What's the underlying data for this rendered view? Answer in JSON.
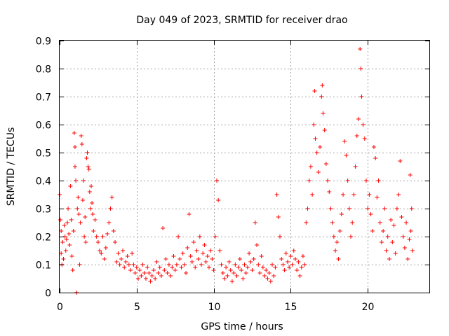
{
  "chart_data": {
    "type": "scatter",
    "title": "Day 049 of 2023, SRMTID for receiver drao",
    "xlabel": "GPS time / hours",
    "ylabel": "SRMTID / TECUs",
    "xlim": [
      0,
      24
    ],
    "ylim": [
      0,
      0.9
    ],
    "x_ticks": [
      0,
      5,
      10,
      15,
      20
    ],
    "y_ticks": [
      0,
      0.1,
      0.2,
      0.3,
      0.4,
      0.5,
      0.6,
      0.7,
      0.8,
      0.9
    ],
    "x_tick_labels": [
      "0",
      "5",
      "10",
      "15",
      "20"
    ],
    "y_tick_labels": [
      "0",
      "0.1",
      "0.2",
      "0.3",
      "0.4",
      "0.5",
      "0.6",
      "0.7",
      "0.8",
      "0.9"
    ],
    "grid": true,
    "marker": "+",
    "color": "#ff0000",
    "series": [
      {
        "name": "SRMTID",
        "description": "scatter of receiver drao points, values estimated from axes",
        "points": [
          [
            0.0,
            0.35
          ],
          [
            0.05,
            0.26
          ],
          [
            0.1,
            0.22
          ],
          [
            0.1,
            0.14
          ],
          [
            0.15,
            0.1
          ],
          [
            0.2,
            0.18
          ],
          [
            0.25,
            0.12
          ],
          [
            0.3,
            0.24
          ],
          [
            0.35,
            0.2
          ],
          [
            0.4,
            0.15
          ],
          [
            0.45,
            0.19
          ],
          [
            0.5,
            0.25
          ],
          [
            0.55,
            0.3
          ],
          [
            0.6,
            0.21
          ],
          [
            0.65,
            0.17
          ],
          [
            0.7,
            0.38
          ],
          [
            0.75,
            0.26
          ],
          [
            0.8,
            0.13
          ],
          [
            0.85,
            0.08
          ],
          [
            0.9,
            0.22
          ],
          [
            0.95,
            0.57
          ],
          [
            1.0,
            0.52
          ],
          [
            1.0,
            0.45
          ],
          [
            1.05,
            0.4
          ],
          [
            1.1,
            0.0
          ],
          [
            1.15,
            0.3
          ],
          [
            1.2,
            0.34
          ],
          [
            1.25,
            0.28
          ],
          [
            1.3,
            0.1
          ],
          [
            1.35,
            0.25
          ],
          [
            1.4,
            0.56
          ],
          [
            1.45,
            0.53
          ],
          [
            1.5,
            0.33
          ],
          [
            1.55,
            0.4
          ],
          [
            1.6,
            0.2
          ],
          [
            1.65,
            0.27
          ],
          [
            1.7,
            0.18
          ],
          [
            1.75,
            0.48
          ],
          [
            1.8,
            0.5
          ],
          [
            1.85,
            0.45
          ],
          [
            1.9,
            0.44
          ],
          [
            1.95,
            0.36
          ],
          [
            2.0,
            0.3
          ],
          [
            2.05,
            0.38
          ],
          [
            2.1,
            0.32
          ],
          [
            2.15,
            0.28
          ],
          [
            2.2,
            0.22
          ],
          [
            2.3,
            0.26
          ],
          [
            2.4,
            0.2
          ],
          [
            2.5,
            0.18
          ],
          [
            2.6,
            0.15
          ],
          [
            2.7,
            0.14
          ],
          [
            2.8,
            0.2
          ],
          [
            2.9,
            0.12
          ],
          [
            3.0,
            0.16
          ],
          [
            3.1,
            0.21
          ],
          [
            3.2,
            0.25
          ],
          [
            3.3,
            0.3
          ],
          [
            3.4,
            0.34
          ],
          [
            3.5,
            0.22
          ],
          [
            3.6,
            0.18
          ],
          [
            3.7,
            0.11
          ],
          [
            3.8,
            0.14
          ],
          [
            3.9,
            0.1
          ],
          [
            4.0,
            0.12
          ],
          [
            4.1,
            0.15
          ],
          [
            4.2,
            0.09
          ],
          [
            4.3,
            0.11
          ],
          [
            4.4,
            0.13
          ],
          [
            4.5,
            0.1
          ],
          [
            4.6,
            0.08
          ],
          [
            4.7,
            0.14
          ],
          [
            4.8,
            0.1
          ],
          [
            4.9,
            0.07
          ],
          [
            5.0,
            0.09
          ],
          [
            5.1,
            0.05
          ],
          [
            5.2,
            0.08
          ],
          [
            5.3,
            0.06
          ],
          [
            5.4,
            0.1
          ],
          [
            5.5,
            0.07
          ],
          [
            5.6,
            0.05
          ],
          [
            5.7,
            0.09
          ],
          [
            5.8,
            0.07
          ],
          [
            5.9,
            0.04
          ],
          [
            6.0,
            0.06
          ],
          [
            6.1,
            0.08
          ],
          [
            6.2,
            0.05
          ],
          [
            6.3,
            0.11
          ],
          [
            6.4,
            0.07
          ],
          [
            6.5,
            0.09
          ],
          [
            6.6,
            0.06
          ],
          [
            6.7,
            0.23
          ],
          [
            6.8,
            0.08
          ],
          [
            6.9,
            0.12
          ],
          [
            7.0,
            0.07
          ],
          [
            7.1,
            0.1
          ],
          [
            7.2,
            0.06
          ],
          [
            7.3,
            0.09
          ],
          [
            7.4,
            0.13
          ],
          [
            7.5,
            0.08
          ],
          [
            7.6,
            0.1
          ],
          [
            7.7,
            0.2
          ],
          [
            7.8,
            0.12
          ],
          [
            7.9,
            0.09
          ],
          [
            8.0,
            0.14
          ],
          [
            8.1,
            0.1
          ],
          [
            8.2,
            0.07
          ],
          [
            8.3,
            0.16
          ],
          [
            8.4,
            0.28
          ],
          [
            8.5,
            0.13
          ],
          [
            8.6,
            0.11
          ],
          [
            8.7,
            0.18
          ],
          [
            8.8,
            0.09
          ],
          [
            8.9,
            0.15
          ],
          [
            9.0,
            0.12
          ],
          [
            9.1,
            0.2
          ],
          [
            9.2,
            0.1
          ],
          [
            9.3,
            0.14
          ],
          [
            9.4,
            0.17
          ],
          [
            9.5,
            0.11
          ],
          [
            9.6,
            0.13
          ],
          [
            9.7,
            0.09
          ],
          [
            9.8,
            0.15
          ],
          [
            9.9,
            0.12
          ],
          [
            10.0,
            0.08
          ],
          [
            10.1,
            0.2
          ],
          [
            10.2,
            0.4
          ],
          [
            10.3,
            0.33
          ],
          [
            10.4,
            0.15
          ],
          [
            10.5,
            0.1
          ],
          [
            10.6,
            0.07
          ],
          [
            10.7,
            0.05
          ],
          [
            10.8,
            0.09
          ],
          [
            10.9,
            0.06
          ],
          [
            11.0,
            0.11
          ],
          [
            11.1,
            0.08
          ],
          [
            11.2,
            0.04
          ],
          [
            11.3,
            0.07
          ],
          [
            11.4,
            0.1
          ],
          [
            11.5,
            0.06
          ],
          [
            11.6,
            0.09
          ],
          [
            11.7,
            0.12
          ],
          [
            11.8,
            0.08
          ],
          [
            11.9,
            0.05
          ],
          [
            12.0,
            0.1
          ],
          [
            12.1,
            0.07
          ],
          [
            12.2,
            0.09
          ],
          [
            12.3,
            0.14
          ],
          [
            12.4,
            0.11
          ],
          [
            12.5,
            0.08
          ],
          [
            12.6,
            0.12
          ],
          [
            12.7,
            0.25
          ],
          [
            12.8,
            0.17
          ],
          [
            12.9,
            0.1
          ],
          [
            13.0,
            0.07
          ],
          [
            13.1,
            0.13
          ],
          [
            13.2,
            0.09
          ],
          [
            13.3,
            0.06
          ],
          [
            13.4,
            0.08
          ],
          [
            13.5,
            0.05
          ],
          [
            13.6,
            0.07
          ],
          [
            13.7,
            0.04
          ],
          [
            13.8,
            0.1
          ],
          [
            13.9,
            0.06
          ],
          [
            14.0,
            0.09
          ],
          [
            14.1,
            0.35
          ],
          [
            14.2,
            0.27
          ],
          [
            14.3,
            0.2
          ],
          [
            14.4,
            0.12
          ],
          [
            14.5,
            0.1
          ],
          [
            14.6,
            0.08
          ],
          [
            14.7,
            0.14
          ],
          [
            14.8,
            0.11
          ],
          [
            14.9,
            0.09
          ],
          [
            15.0,
            0.13
          ],
          [
            15.1,
            0.1
          ],
          [
            15.2,
            0.15
          ],
          [
            15.3,
            0.12
          ],
          [
            15.4,
            0.08
          ],
          [
            15.5,
            0.11
          ],
          [
            15.6,
            0.06
          ],
          [
            15.7,
            0.09
          ],
          [
            15.8,
            0.13
          ],
          [
            15.9,
            0.1
          ],
          [
            16.0,
            0.25
          ],
          [
            16.1,
            0.3
          ],
          [
            16.2,
            0.4
          ],
          [
            16.3,
            0.45
          ],
          [
            16.4,
            0.35
          ],
          [
            16.5,
            0.6
          ],
          [
            16.55,
            0.72
          ],
          [
            16.6,
            0.55
          ],
          [
            16.7,
            0.5
          ],
          [
            16.8,
            0.43
          ],
          [
            16.9,
            0.52
          ],
          [
            17.0,
            0.7
          ],
          [
            17.05,
            0.74
          ],
          [
            17.1,
            0.64
          ],
          [
            17.2,
            0.58
          ],
          [
            17.3,
            0.46
          ],
          [
            17.4,
            0.4
          ],
          [
            17.5,
            0.36
          ],
          [
            17.6,
            0.3
          ],
          [
            17.7,
            0.25
          ],
          [
            17.8,
            0.2
          ],
          [
            17.9,
            0.15
          ],
          [
            18.0,
            0.18
          ],
          [
            18.1,
            0.12
          ],
          [
            18.2,
            0.22
          ],
          [
            18.3,
            0.28
          ],
          [
            18.4,
            0.35
          ],
          [
            18.5,
            0.54
          ],
          [
            18.6,
            0.49
          ],
          [
            18.7,
            0.4
          ],
          [
            18.8,
            0.3
          ],
          [
            18.9,
            0.2
          ],
          [
            19.0,
            0.25
          ],
          [
            19.1,
            0.35
          ],
          [
            19.2,
            0.45
          ],
          [
            19.3,
            0.56
          ],
          [
            19.4,
            0.62
          ],
          [
            19.5,
            0.87
          ],
          [
            19.55,
            0.8
          ],
          [
            19.6,
            0.7
          ],
          [
            19.7,
            0.6
          ],
          [
            19.8,
            0.55
          ],
          [
            19.9,
            0.4
          ],
          [
            20.0,
            0.3
          ],
          [
            20.1,
            0.35
          ],
          [
            20.2,
            0.28
          ],
          [
            20.3,
            0.22
          ],
          [
            20.4,
            0.52
          ],
          [
            20.5,
            0.48
          ],
          [
            20.6,
            0.34
          ],
          [
            20.7,
            0.4
          ],
          [
            20.8,
            0.25
          ],
          [
            20.9,
            0.18
          ],
          [
            21.0,
            0.22
          ],
          [
            21.1,
            0.3
          ],
          [
            21.2,
            0.15
          ],
          [
            21.3,
            0.2
          ],
          [
            21.4,
            0.12
          ],
          [
            21.5,
            0.26
          ],
          [
            21.6,
            0.18
          ],
          [
            21.7,
            0.24
          ],
          [
            21.8,
            0.14
          ],
          [
            21.9,
            0.3
          ],
          [
            22.0,
            0.35
          ],
          [
            22.1,
            0.47
          ],
          [
            22.2,
            0.27
          ],
          [
            22.3,
            0.2
          ],
          [
            22.4,
            0.16
          ],
          [
            22.5,
            0.25
          ],
          [
            22.6,
            0.12
          ],
          [
            22.7,
            0.19
          ],
          [
            22.75,
            0.42
          ],
          [
            22.8,
            0.22
          ],
          [
            22.85,
            0.3
          ],
          [
            22.9,
            0.15
          ]
        ]
      }
    ]
  }
}
